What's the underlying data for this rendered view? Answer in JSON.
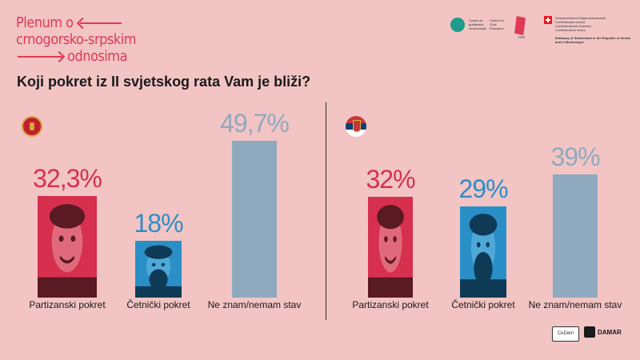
{
  "branding": {
    "line1": "Plenum o",
    "line2": "crnogorsko-srpskim",
    "line3": "odnosima"
  },
  "question": "Koji pokret iz II svjetskog rata Vam je bliži?",
  "partner_logos": {
    "ngo1": "Centar za građansko obrazovanje",
    "ngo2": "Centre for Civic Education",
    "pink": "DRŽ",
    "swiss_lines": [
      "Schweizerische Eidgenossenschaft",
      "Confédération suisse",
      "Confederazione Svizzera",
      "Confederaziun svizra"
    ],
    "swiss_embassy": "Embassy of Switzerland in the Republic of Serbia and in Montenegro"
  },
  "footer_logos": {
    "logo1": "CeDem",
    "logo2": "DAMAR"
  },
  "colors": {
    "partizanski": "#d6304e",
    "cetnicki": "#2b8fc7",
    "ne_znam": "#8faabf",
    "background": "#f2c4c4"
  },
  "chart_data": [
    {
      "type": "bar",
      "region": "Crna Gora",
      "icon": "montenegro-flag-icon",
      "categories": [
        "Partizanski pokret",
        "Četnički pokret",
        "Ne znam/nemam stav"
      ],
      "values": [
        32.3,
        18,
        49.7
      ],
      "value_labels": [
        "32,3%",
        "18%",
        "49,7%"
      ],
      "ylim": [
        0,
        50
      ]
    },
    {
      "type": "bar",
      "region": "Srbija",
      "icon": "serbia-flag-icon",
      "categories": [
        "Partizanski pokret",
        "Četnički pokret",
        "Ne znam/nemam stav"
      ],
      "values": [
        32,
        29,
        39
      ],
      "value_labels": [
        "32%",
        "29%",
        "39%"
      ],
      "ylim": [
        0,
        50
      ]
    }
  ]
}
